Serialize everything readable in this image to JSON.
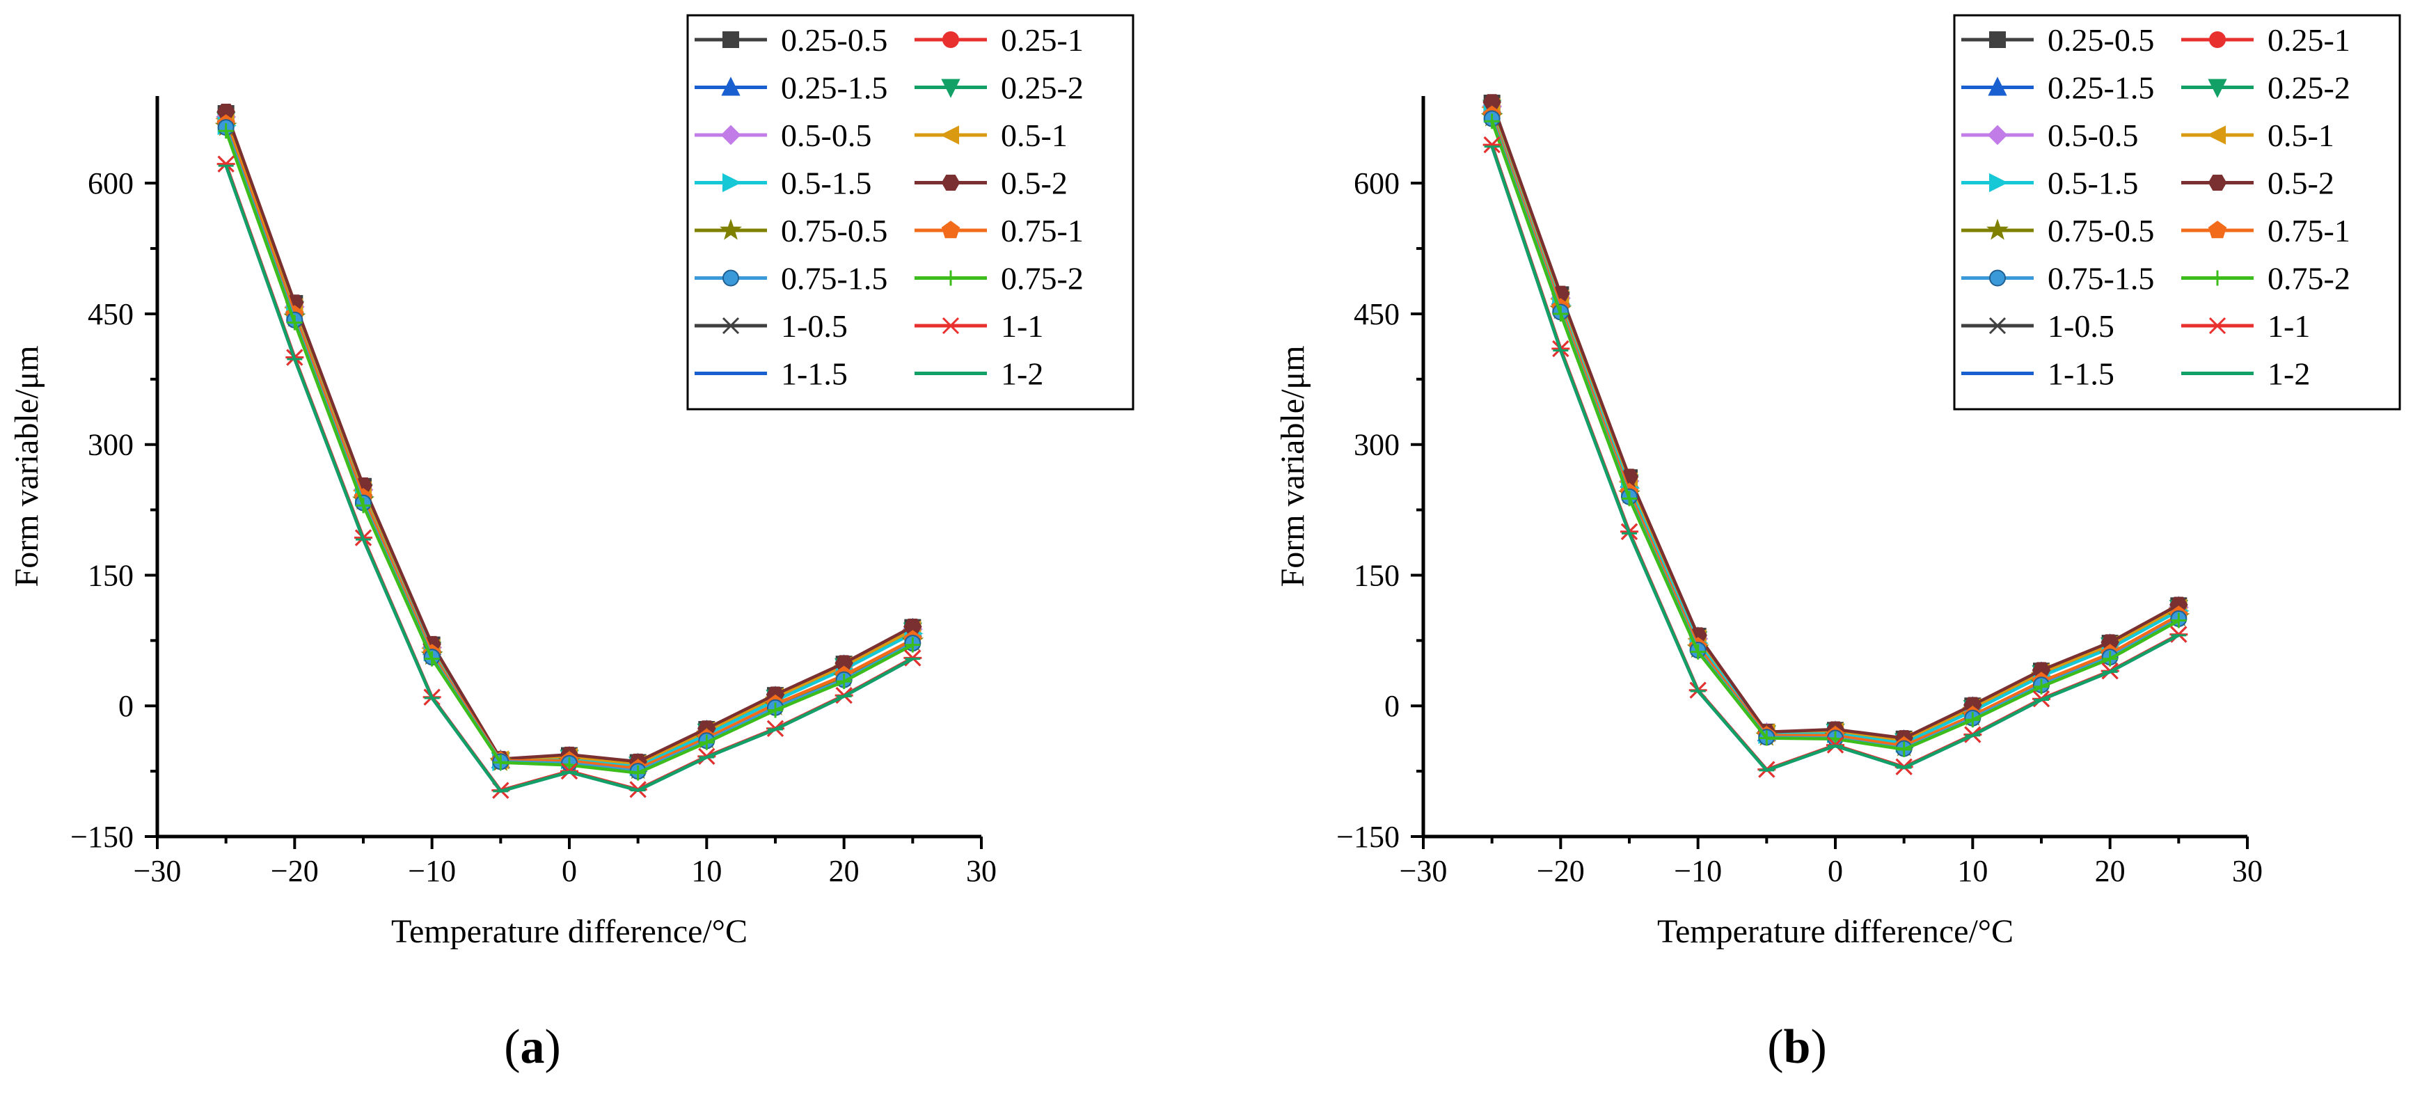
{
  "series_names": [
    "0.25-0.5",
    "0.25-1",
    "0.25-1.5",
    "0.25-2",
    "0.5-0.5",
    "0.5-1",
    "0.5-1.5",
    "0.5-2",
    "0.75-0.5",
    "0.75-1",
    "0.75-1.5",
    "0.75-2",
    "1-0.5",
    "1-1",
    "1-1.5",
    "1-2"
  ],
  "series_style": [
    {
      "color": "#404040",
      "marker": "square"
    },
    {
      "color": "#e8302e",
      "marker": "circle"
    },
    {
      "color": "#1a5fd0",
      "marker": "triangle-up"
    },
    {
      "color": "#12a066",
      "marker": "triangle-down"
    },
    {
      "color": "#c27ce8",
      "marker": "diamond"
    },
    {
      "color": "#d99a12",
      "marker": "triangle-left"
    },
    {
      "color": "#16c8d6",
      "marker": "triangle-right"
    },
    {
      "color": "#7a3030",
      "marker": "hexagon"
    },
    {
      "color": "#7f7f00",
      "marker": "star"
    },
    {
      "color": "#f26b1a",
      "marker": "pentagon"
    },
    {
      "color": "#3a9ad9",
      "marker": "sphere"
    },
    {
      "color": "#3cbd1c",
      "marker": "plus"
    },
    {
      "color": "#404040",
      "marker": "x"
    },
    {
      "color": "#e8302e",
      "marker": "asterisk"
    },
    {
      "color": "#1a5fd0",
      "marker": "none"
    },
    {
      "color": "#12a066",
      "marker": "dash"
    }
  ],
  "chart_data": [
    {
      "type": "line",
      "panel_label": "a",
      "title": "",
      "xlabel": "Temperature difference/°C",
      "ylabel": "Form variable/μm",
      "xlim": [
        -30,
        30
      ],
      "ylim": [
        -150,
        700
      ],
      "xticks": [
        -30,
        -20,
        -10,
        0,
        10,
        20,
        30
      ],
      "xtick_labels": [
        "−30",
        "−20",
        "−10",
        "0",
        "10",
        "20",
        "30"
      ],
      "yticks": [
        -150,
        0,
        150,
        300,
        450,
        600
      ],
      "ytick_labels": [
        "−150",
        "0",
        "150",
        "300",
        "450",
        "600"
      ],
      "legend_position": "top-right",
      "x": [
        -25,
        -20,
        -15,
        -10,
        -5,
        0,
        5,
        10,
        15,
        20,
        25
      ],
      "series": [
        {
          "name": "0.25-0.5",
          "values": [
            680,
            462,
            252,
            70,
            -62,
            -57,
            -65,
            -27,
            12,
            48,
            90
          ]
        },
        {
          "name": "0.25-1",
          "values": [
            680,
            462,
            252,
            70,
            -62,
            -57,
            -65,
            -27,
            12,
            48,
            90
          ]
        },
        {
          "name": "0.25-1.5",
          "values": [
            678,
            460,
            250,
            68,
            -62,
            -58,
            -66,
            -28,
            11,
            47,
            89
          ]
        },
        {
          "name": "0.25-2",
          "values": [
            672,
            455,
            245,
            64,
            -63,
            -60,
            -68,
            -30,
            9,
            45,
            86
          ]
        },
        {
          "name": "0.5-0.5",
          "values": [
            676,
            458,
            248,
            67,
            -62,
            -58,
            -67,
            -29,
            10,
            46,
            88
          ]
        },
        {
          "name": "0.5-1",
          "values": [
            674,
            457,
            247,
            66,
            -62,
            -59,
            -67,
            -29,
            10,
            46,
            87
          ]
        },
        {
          "name": "0.5-1.5",
          "values": [
            666,
            450,
            240,
            62,
            -64,
            -62,
            -70,
            -33,
            6,
            42,
            83
          ]
        },
        {
          "name": "0.5-2",
          "values": [
            682,
            463,
            253,
            71,
            -61,
            -56,
            -64,
            -26,
            13,
            49,
            91
          ]
        },
        {
          "name": "0.75-0.5",
          "values": [
            665,
            446,
            236,
            58,
            -64,
            -64,
            -73,
            -38,
            0,
            33,
            74
          ]
        },
        {
          "name": "0.75-1",
          "values": [
            668,
            449,
            239,
            60,
            -63,
            -63,
            -72,
            -37,
            2,
            35,
            76
          ]
        },
        {
          "name": "0.75-1.5",
          "values": [
            664,
            443,
            233,
            56,
            -64,
            -66,
            -75,
            -40,
            -2,
            30,
            72
          ]
        },
        {
          "name": "0.75-2",
          "values": [
            660,
            440,
            230,
            54,
            -65,
            -68,
            -77,
            -42,
            -5,
            28,
            70
          ]
        },
        {
          "name": "1-0.5",
          "values": [
            622,
            400,
            193,
            10,
            -97,
            -75,
            -96,
            -58,
            -26,
            12,
            55
          ]
        },
        {
          "name": "1-1",
          "values": [
            622,
            400,
            193,
            10,
            -97,
            -75,
            -96,
            -58,
            -26,
            12,
            55
          ]
        },
        {
          "name": "1-1.5",
          "values": [
            620,
            398,
            191,
            9,
            -98,
            -76,
            -97,
            -59,
            -27,
            11,
            54
          ]
        },
        {
          "name": "1-2",
          "values": [
            620,
            398,
            191,
            9,
            -98,
            -76,
            -97,
            -59,
            -27,
            11,
            54
          ]
        }
      ]
    },
    {
      "type": "line",
      "panel_label": "b",
      "title": "",
      "xlabel": "Temperature difference/°C",
      "ylabel": "Form variable/μm",
      "xlim": [
        -30,
        30
      ],
      "ylim": [
        -150,
        700
      ],
      "xticks": [
        -30,
        -20,
        -10,
        0,
        10,
        20,
        30
      ],
      "xtick_labels": [
        "−30",
        "−20",
        "−10",
        "0",
        "10",
        "20",
        "30"
      ],
      "yticks": [
        -150,
        0,
        150,
        300,
        450,
        600
      ],
      "ytick_labels": [
        "−150",
        "0",
        "150",
        "300",
        "450",
        "600"
      ],
      "legend_position": "top-right",
      "x": [
        -25,
        -20,
        -15,
        -10,
        -5,
        0,
        5,
        10,
        15,
        20,
        25
      ],
      "series": [
        {
          "name": "0.25-0.5",
          "values": [
            692,
            472,
            262,
            80,
            -30,
            -28,
            -38,
            0,
            40,
            72,
            115
          ]
        },
        {
          "name": "0.25-1",
          "values": [
            692,
            472,
            262,
            80,
            -30,
            -28,
            -38,
            0,
            40,
            72,
            115
          ]
        },
        {
          "name": "0.25-1.5",
          "values": [
            690,
            470,
            260,
            79,
            -31,
            -29,
            -39,
            -1,
            39,
            71,
            114
          ]
        },
        {
          "name": "0.25-2",
          "values": [
            686,
            466,
            256,
            76,
            -32,
            -30,
            -41,
            -3,
            37,
            69,
            112
          ]
        },
        {
          "name": "0.5-0.5",
          "values": [
            688,
            468,
            258,
            77,
            -31,
            -29,
            -40,
            -2,
            38,
            70,
            113
          ]
        },
        {
          "name": "0.5-1",
          "values": [
            687,
            467,
            257,
            77,
            -31,
            -30,
            -40,
            -2,
            38,
            70,
            112
          ]
        },
        {
          "name": "0.5-1.5",
          "values": [
            680,
            460,
            250,
            72,
            -33,
            -32,
            -43,
            -6,
            34,
            66,
            109
          ]
        },
        {
          "name": "0.5-2",
          "values": [
            693,
            473,
            263,
            81,
            -30,
            -27,
            -37,
            1,
            41,
            73,
            116
          ]
        },
        {
          "name": "0.75-0.5",
          "values": [
            676,
            455,
            243,
            66,
            -35,
            -35,
            -47,
            -12,
            26,
            58,
            102
          ]
        },
        {
          "name": "0.75-1",
          "values": [
            678,
            457,
            245,
            68,
            -34,
            -34,
            -46,
            -11,
            28,
            60,
            104
          ]
        },
        {
          "name": "0.75-1.5",
          "values": [
            674,
            452,
            240,
            64,
            -36,
            -37,
            -49,
            -14,
            24,
            56,
            100
          ]
        },
        {
          "name": "0.75-2",
          "values": [
            671,
            450,
            238,
            62,
            -37,
            -38,
            -50,
            -16,
            22,
            54,
            98
          ]
        },
        {
          "name": "1-0.5",
          "values": [
            644,
            410,
            200,
            18,
            -73,
            -45,
            -70,
            -33,
            8,
            40,
            82
          ]
        },
        {
          "name": "1-1",
          "values": [
            644,
            410,
            200,
            18,
            -73,
            -45,
            -70,
            -33,
            8,
            40,
            82
          ]
        },
        {
          "name": "1-1.5",
          "values": [
            642,
            408,
            198,
            17,
            -74,
            -46,
            -71,
            -34,
            7,
            39,
            81
          ]
        },
        {
          "name": "1-2",
          "values": [
            642,
            408,
            198,
            17,
            -74,
            -46,
            -71,
            -34,
            7,
            39,
            81
          ]
        }
      ]
    }
  ]
}
